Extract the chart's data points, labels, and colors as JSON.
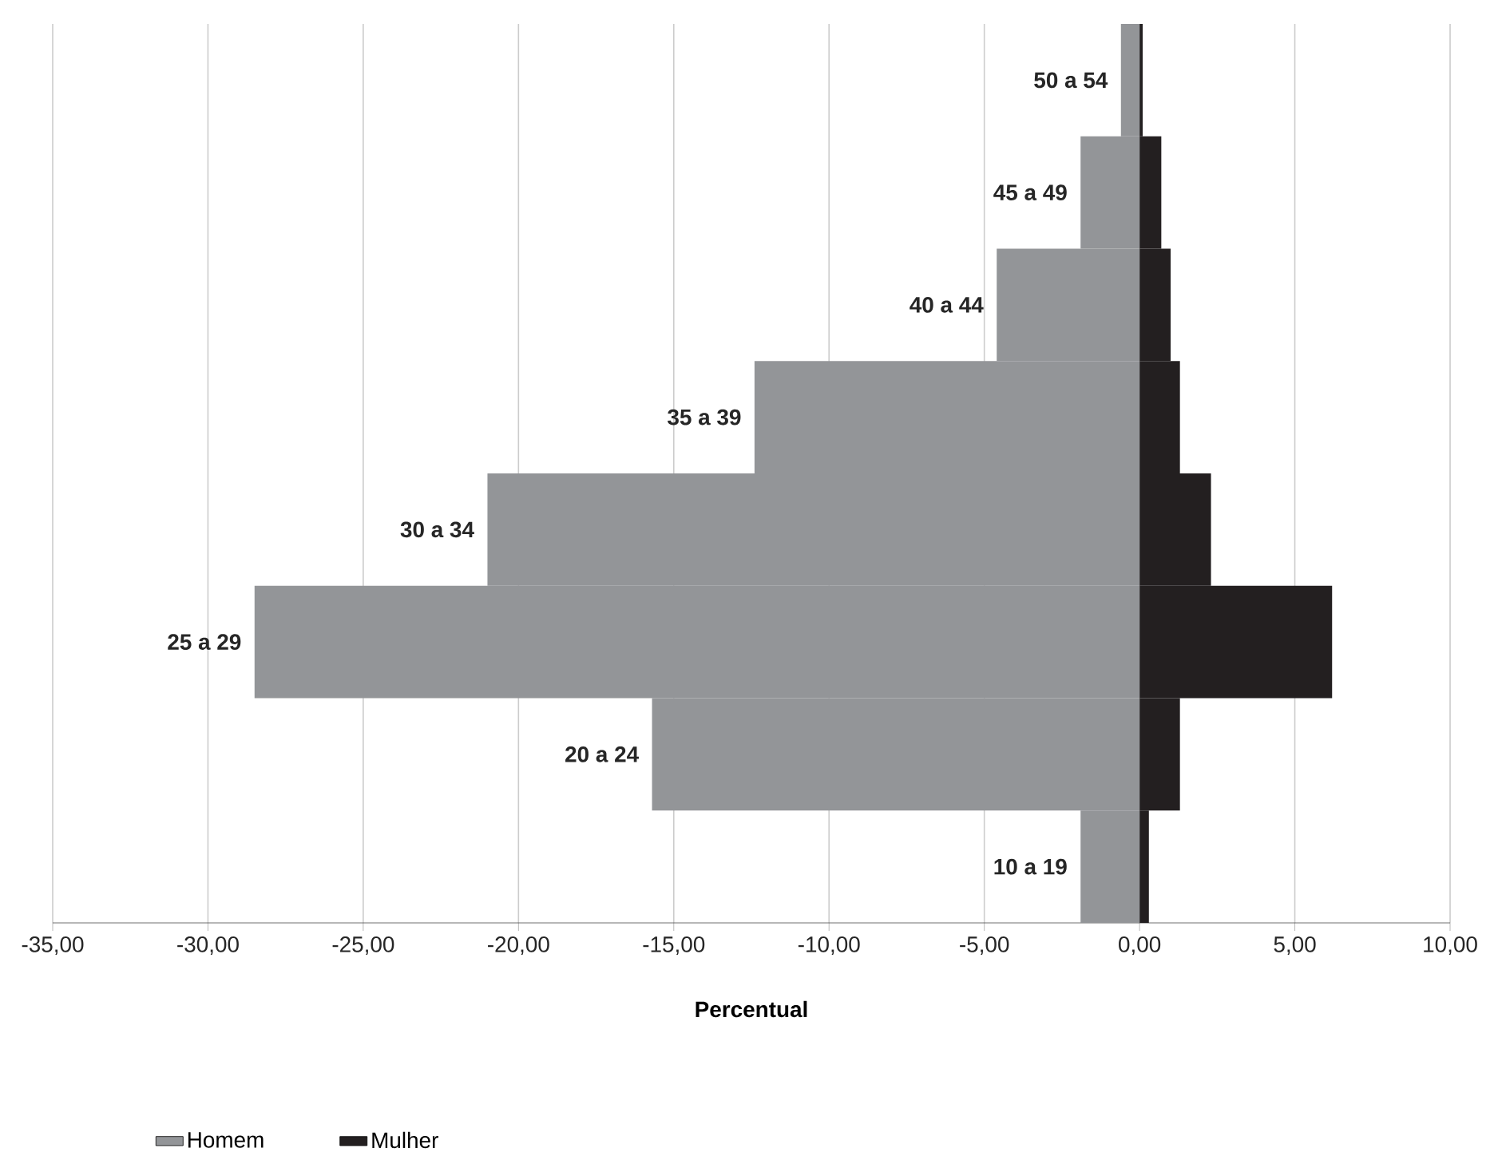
{
  "chart_data": {
    "type": "bar",
    "orientation": "horizontal",
    "xlabel": "Percentual",
    "categories": [
      "50 a 54",
      "45 a 49",
      "40 a 44",
      "35 a 39",
      "30 a 34",
      "25 a 29",
      "20 a 24",
      "10 a 19"
    ],
    "series": [
      {
        "name": "Homem",
        "color": "#939598",
        "values": [
          -0.6,
          -1.9,
          -4.6,
          -12.4,
          -21.0,
          -28.5,
          -15.7,
          -1.9
        ]
      },
      {
        "name": "Mulher",
        "color": "#231f20",
        "values": [
          0.1,
          0.7,
          1.0,
          1.3,
          2.3,
          6.2,
          1.3,
          0.3
        ]
      }
    ],
    "xlim": [
      -35,
      10
    ],
    "xticks": [
      {
        "value": -35,
        "label": "-35,00"
      },
      {
        "value": -30,
        "label": "-30,00"
      },
      {
        "value": -25,
        "label": "-25,00"
      },
      {
        "value": -20,
        "label": "-20,00"
      },
      {
        "value": -15,
        "label": "-15,00"
      },
      {
        "value": -10,
        "label": "-10,00"
      },
      {
        "value": -5,
        "label": "-5,00"
      },
      {
        "value": 0,
        "label": "0,00"
      },
      {
        "value": 5,
        "label": "5,00"
      },
      {
        "value": 10,
        "label": "10,00"
      }
    ],
    "grid": "x",
    "legend": "bottom left",
    "stacked": true
  }
}
